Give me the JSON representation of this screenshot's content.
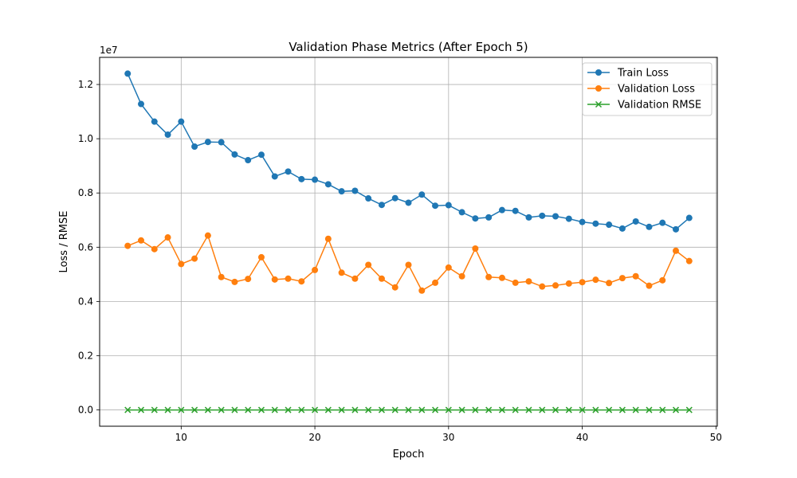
{
  "chart_data": {
    "type": "line",
    "title": "Validation Phase Metrics (After Epoch 5)",
    "xlabel": "Epoch",
    "ylabel": "Loss / RMSE",
    "y_offset_label": "1e7",
    "xlim": [
      3.9,
      50.1
    ],
    "ylim": [
      -0.06,
      1.3
    ],
    "x_ticks": [
      10,
      20,
      30,
      40,
      50
    ],
    "y_ticks": [
      0.0,
      0.2,
      0.4,
      0.6,
      0.8,
      1.0,
      1.2
    ],
    "y_tick_labels": [
      "0.0",
      "0.2",
      "0.4",
      "0.6",
      "0.8",
      "1.0",
      "1.2"
    ],
    "grid": true,
    "legend_position": "top-right",
    "x": [
      6,
      7,
      8,
      9,
      10,
      11,
      12,
      13,
      14,
      15,
      16,
      17,
      18,
      19,
      20,
      21,
      22,
      23,
      24,
      25,
      26,
      27,
      28,
      29,
      30,
      31,
      32,
      33,
      34,
      35,
      36,
      37,
      38,
      39,
      40,
      41,
      42,
      43,
      44,
      45,
      46,
      47,
      48
    ],
    "series": [
      {
        "name": "Train Loss",
        "color": "#1f77b4",
        "marker": "circle",
        "values": [
          1.24,
          1.128,
          1.063,
          1.015,
          1.063,
          0.971,
          0.988,
          0.987,
          0.942,
          0.921,
          0.941,
          0.861,
          0.879,
          0.851,
          0.849,
          0.832,
          0.806,
          0.808,
          0.78,
          0.756,
          0.781,
          0.764,
          0.794,
          0.753,
          0.755,
          0.729,
          0.706,
          0.71,
          0.737,
          0.734,
          0.71,
          0.716,
          0.714,
          0.705,
          0.693,
          0.687,
          0.683,
          0.669,
          0.695,
          0.675,
          0.69,
          0.666,
          0.708
        ]
      },
      {
        "name": "Validation Loss",
        "color": "#ff7f0e",
        "marker": "circle",
        "values": [
          0.605,
          0.625,
          0.593,
          0.636,
          0.538,
          0.558,
          0.643,
          0.49,
          0.472,
          0.483,
          0.563,
          0.481,
          0.484,
          0.474,
          0.516,
          0.631,
          0.506,
          0.484,
          0.535,
          0.484,
          0.452,
          0.535,
          0.44,
          0.469,
          0.525,
          0.493,
          0.595,
          0.49,
          0.487,
          0.469,
          0.474,
          0.455,
          0.459,
          0.466,
          0.471,
          0.48,
          0.468,
          0.486,
          0.493,
          0.458,
          0.478,
          0.587,
          0.549
        ]
      },
      {
        "name": "Validation RMSE",
        "color": "#2ca02c",
        "marker": "x",
        "values": [
          0,
          0,
          0,
          0,
          0,
          0,
          0,
          0,
          0,
          0,
          0,
          0,
          0,
          0,
          0,
          0,
          0,
          0,
          0,
          0,
          0,
          0,
          0,
          0,
          0,
          0,
          0,
          0,
          0,
          0,
          0,
          0,
          0,
          0,
          0,
          0,
          0,
          0,
          0,
          0,
          0,
          0,
          0
        ]
      }
    ]
  }
}
